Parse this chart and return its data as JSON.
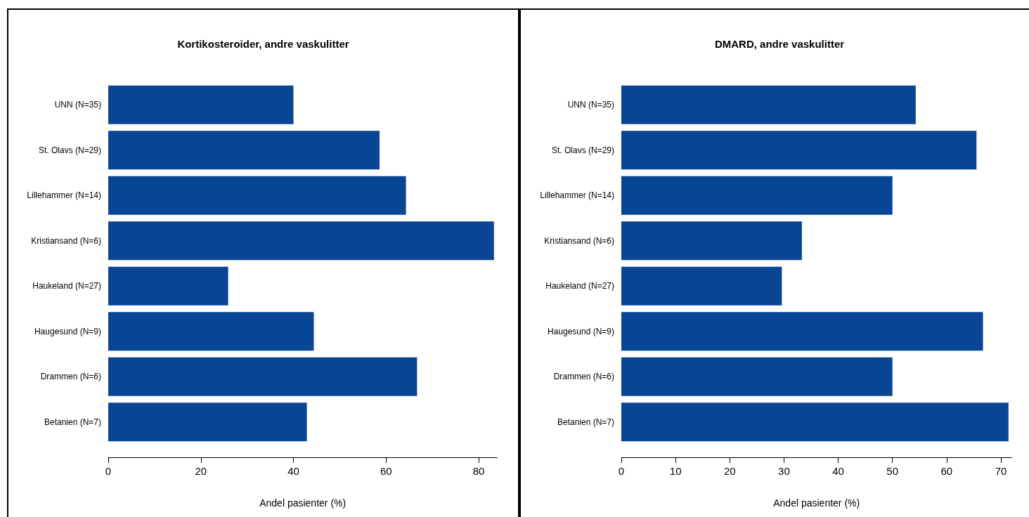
{
  "chart_data": [
    {
      "type": "bar",
      "orientation": "horizontal",
      "title": "Kortikosteroider, andre vaskulitter",
      "xlabel": "Andel pasienter (%)",
      "categories": [
        "UNN (N=35)",
        "St. Olavs (N=29)",
        "Lillehammer (N=14)",
        "Kristiansand (N=6)",
        "Haukeland (N=27)",
        "Haugesund (N=9)",
        "Drammen (N=6)",
        "Betanien (N=7)"
      ],
      "values": [
        40,
        58.6,
        64.3,
        83.3,
        25.9,
        44.4,
        66.7,
        42.9
      ],
      "color": "#084594",
      "xlim": [
        0,
        84
      ],
      "xticks": [
        0,
        20,
        40,
        60,
        80
      ],
      "grid": false
    },
    {
      "type": "bar",
      "orientation": "horizontal",
      "title": "DMARD, andre vaskulitter",
      "xlabel": "Andel pasienter (%)",
      "categories": [
        "UNN (N=35)",
        "St. Olavs (N=29)",
        "Lillehammer (N=14)",
        "Kristiansand (N=6)",
        "Haukeland (N=27)",
        "Haugesund (N=9)",
        "Drammen (N=6)",
        "Betanien (N=7)"
      ],
      "values": [
        54.3,
        65.5,
        50,
        33.3,
        29.6,
        66.7,
        50,
        71.4
      ],
      "color": "#084594",
      "xlim": [
        0,
        72
      ],
      "xticks": [
        0,
        10,
        20,
        30,
        40,
        50,
        60,
        70
      ],
      "grid": false
    }
  ]
}
